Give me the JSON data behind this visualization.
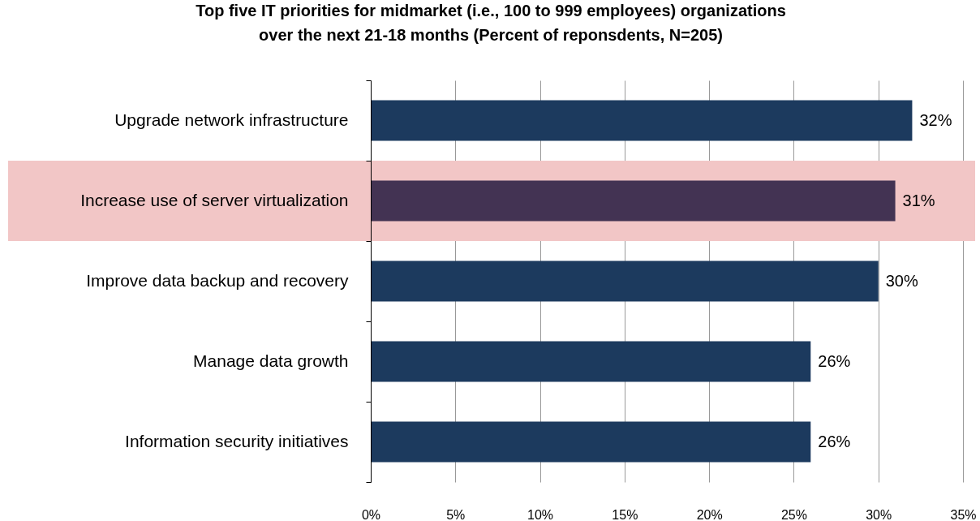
{
  "chart_data": {
    "type": "bar",
    "orientation": "horizontal",
    "title": "Top five IT priorities for midmarket (i.e., 100 to 999 employees) organizations\nover the next 21-18 months (Percent of reponsdents, N=205)",
    "categories": [
      "Upgrade network infrastructure",
      "Increase use of server virtualization",
      "Improve data backup and recovery",
      "Manage data growth",
      "Information security initiatives"
    ],
    "values": [
      32,
      31,
      30,
      26,
      26
    ],
    "value_labels": [
      "32%",
      "31%",
      "30%",
      "26%",
      "26%"
    ],
    "colors": [
      "#1c3a5e",
      "#433353",
      "#1c3a5e",
      "#1c3a5e",
      "#1c3a5e"
    ],
    "xlim": [
      0,
      35
    ],
    "xticks": [
      {
        "value": 0,
        "label": "0%"
      },
      {
        "value": 5,
        "label": "5%"
      },
      {
        "value": 10,
        "label": "10%"
      },
      {
        "value": 15,
        "label": "15%"
      },
      {
        "value": 20,
        "label": "20%"
      },
      {
        "value": 25,
        "label": "25%"
      },
      {
        "value": 30,
        "label": "30%"
      },
      {
        "value": 35,
        "label": "35%"
      }
    ],
    "grid": "x",
    "bands": [
      {
        "axis": "y",
        "from": "Increase use of server virtualization",
        "to": "Increase use of server virtualization",
        "color": "#f2c6c6"
      }
    ]
  }
}
